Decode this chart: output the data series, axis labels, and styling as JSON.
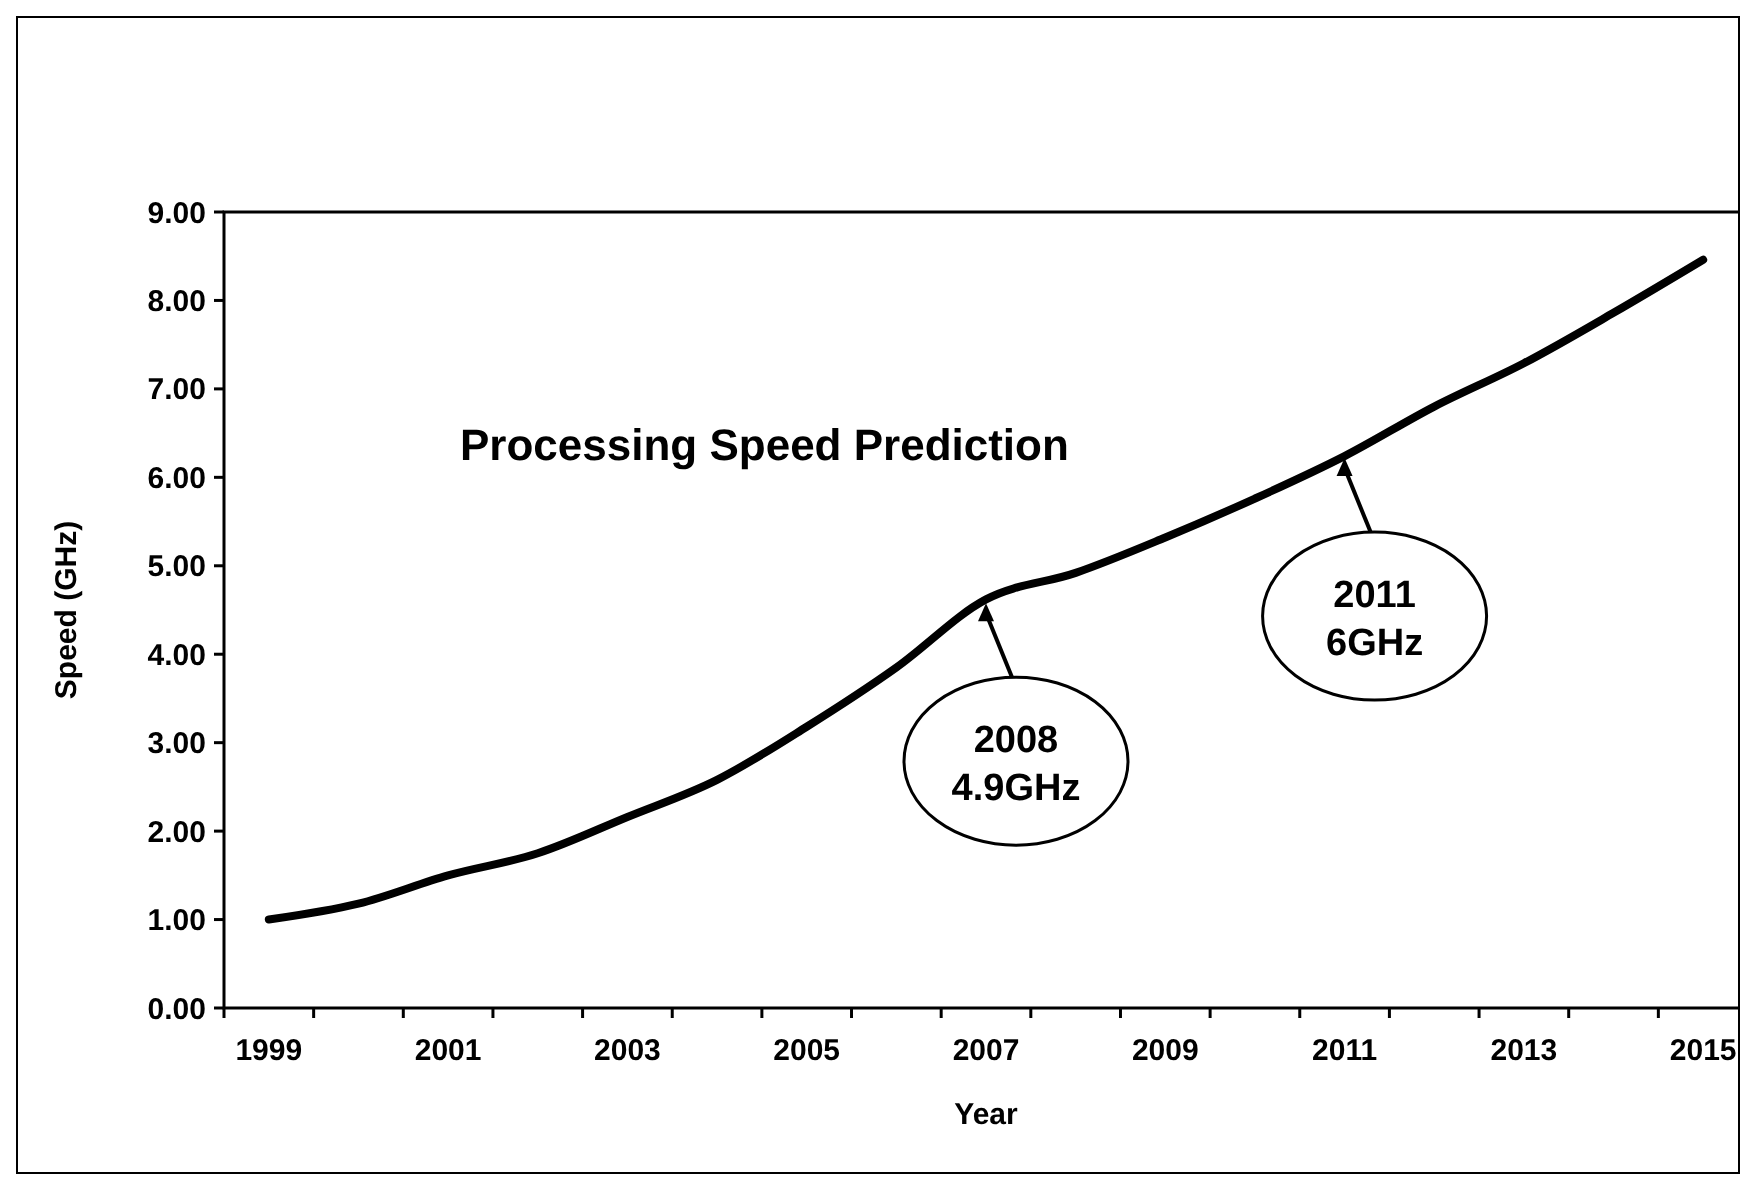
{
  "chart_data": {
    "type": "line",
    "title": "Processing Speed Prediction",
    "xlabel": "Year",
    "ylabel": "Speed (GHz)",
    "categories": [
      "1999",
      null,
      "2001",
      null,
      "2003",
      null,
      "2005",
      null,
      "2007",
      null,
      "2009",
      null,
      "2011",
      null,
      "2013",
      null,
      "2015"
    ],
    "series": [
      {
        "color": "#000000",
        "values": [
          1.0,
          1.18,
          1.5,
          1.75,
          2.16,
          2.58,
          3.18,
          3.85,
          4.62,
          4.92,
          5.32,
          5.76,
          6.24,
          6.8,
          7.29,
          7.86,
          8.46
        ]
      }
    ],
    "ylim": [
      0,
      9
    ],
    "yticks": [
      {
        "value": 0,
        "label": "0.00"
      },
      {
        "value": 1,
        "label": "1.00"
      },
      {
        "value": 2,
        "label": "2.00"
      },
      {
        "value": 3,
        "label": "3.00"
      },
      {
        "value": 4,
        "label": "4.00"
      },
      {
        "value": 5,
        "label": "5.00"
      },
      {
        "value": 6,
        "label": "6.00"
      },
      {
        "value": 7,
        "label": "7.00"
      },
      {
        "value": 8,
        "label": "8.00"
      },
      {
        "value": 9,
        "label": "9.00"
      }
    ],
    "annotations": [
      {
        "text": "2008\n4.9GHz",
        "x": "2007",
        "y": 4.6
      },
      {
        "text": "2011\n6GHz",
        "x": "2011",
        "y": 6.24
      }
    ]
  }
}
